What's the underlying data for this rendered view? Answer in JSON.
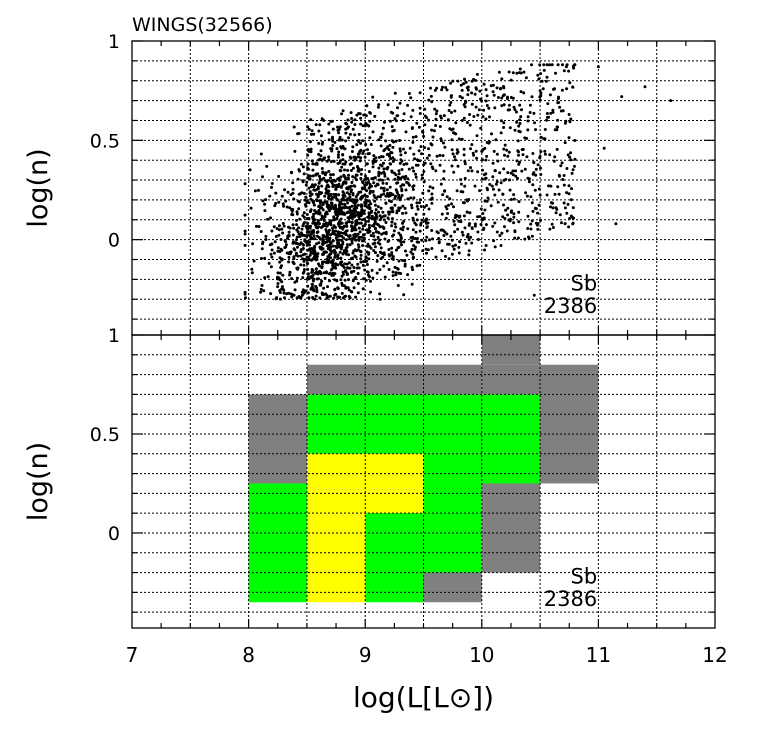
{
  "title": "WINGS(32566)",
  "chart_data": [
    {
      "type": "scatter",
      "panel": "top",
      "title": "WINGS(32566)",
      "xlabel": "",
      "ylabel": "log(n)",
      "xlim": [
        7,
        12
      ],
      "ylim": [
        -0.48,
        1.0
      ],
      "yticks": [
        0,
        0.5,
        1
      ],
      "ytick_labels": [
        "0",
        "0.5",
        "1"
      ],
      "grid": true,
      "annotation": {
        "label": "Sb",
        "count": "2386"
      },
      "point_cloud": {
        "n_points": 2386,
        "x_range": [
          7.97,
          11.62
        ],
        "y_range": [
          -0.3,
          0.9
        ],
        "y_floor": -0.3,
        "core_centroid": [
          8.8,
          0.12
        ],
        "trend": "positive correlation between log(L) and log(n)",
        "notable_outliers": [
          [
            11.62,
            0.7
          ],
          [
            11.4,
            0.77
          ],
          [
            11.15,
            0.08
          ],
          [
            11.2,
            0.72
          ],
          [
            11.05,
            0.46
          ],
          [
            11.0,
            0.87
          ],
          [
            10.45,
            -0.28
          ]
        ]
      }
    },
    {
      "type": "heatmap",
      "panel": "bottom",
      "xlabel": "log(L[L⊙])",
      "ylabel": "log(n)",
      "xlim": [
        7,
        12
      ],
      "ylim": [
        -0.48,
        1.0
      ],
      "xticks": [
        7,
        8,
        9,
        10,
        11,
        12
      ],
      "xtick_labels": [
        "7",
        "8",
        "9",
        "10",
        "11",
        "12"
      ],
      "yticks": [
        0,
        0.5,
        1
      ],
      "ytick_labels": [
        "0",
        "0.5",
        "1"
      ],
      "grid": true,
      "annotation": {
        "label": "Sb",
        "count": "2386"
      },
      "levels": {
        "low": "#808080",
        "mid": "#00ff00",
        "high": "#ffff00"
      },
      "cells": [
        {
          "x0": 10.0,
          "x1": 10.5,
          "y0": 0.85,
          "y1": 1.0,
          "level": "low"
        },
        {
          "x0": 8.5,
          "x1": 10.0,
          "y0": 0.7,
          "y1": 0.85,
          "level": "low"
        },
        {
          "x0": 10.5,
          "x1": 11.0,
          "y0": 0.7,
          "y1": 0.85,
          "level": "low"
        },
        {
          "x0": 10.0,
          "x1": 10.5,
          "y0": 0.7,
          "y1": 0.85,
          "level": "low"
        },
        {
          "x0": 8.0,
          "x1": 8.5,
          "y0": 0.25,
          "y1": 0.7,
          "level": "low"
        },
        {
          "x0": 10.5,
          "x1": 11.0,
          "y0": 0.25,
          "y1": 0.7,
          "level": "low"
        },
        {
          "x0": 8.5,
          "x1": 10.5,
          "y0": 0.4,
          "y1": 0.7,
          "level": "mid"
        },
        {
          "x0": 9.5,
          "x1": 10.5,
          "y0": 0.25,
          "y1": 0.4,
          "level": "mid"
        },
        {
          "x0": 8.5,
          "x1": 9.5,
          "y0": 0.1,
          "y1": 0.4,
          "level": "high"
        },
        {
          "x0": 8.0,
          "x1": 8.5,
          "y0": -0.35,
          "y1": 0.25,
          "level": "mid"
        },
        {
          "x0": 9.5,
          "x1": 10.0,
          "y0": -0.2,
          "y1": 0.25,
          "level": "mid"
        },
        {
          "x0": 9.0,
          "x1": 9.5,
          "y0": -0.35,
          "y1": 0.1,
          "level": "mid"
        },
        {
          "x0": 8.5,
          "x1": 9.0,
          "y0": -0.35,
          "y1": 0.1,
          "level": "high"
        },
        {
          "x0": 9.5,
          "x1": 10.0,
          "y0": -0.35,
          "y1": -0.2,
          "level": "low"
        },
        {
          "x0": 10.0,
          "x1": 10.5,
          "y0": -0.2,
          "y1": 0.25,
          "level": "low"
        }
      ]
    }
  ]
}
